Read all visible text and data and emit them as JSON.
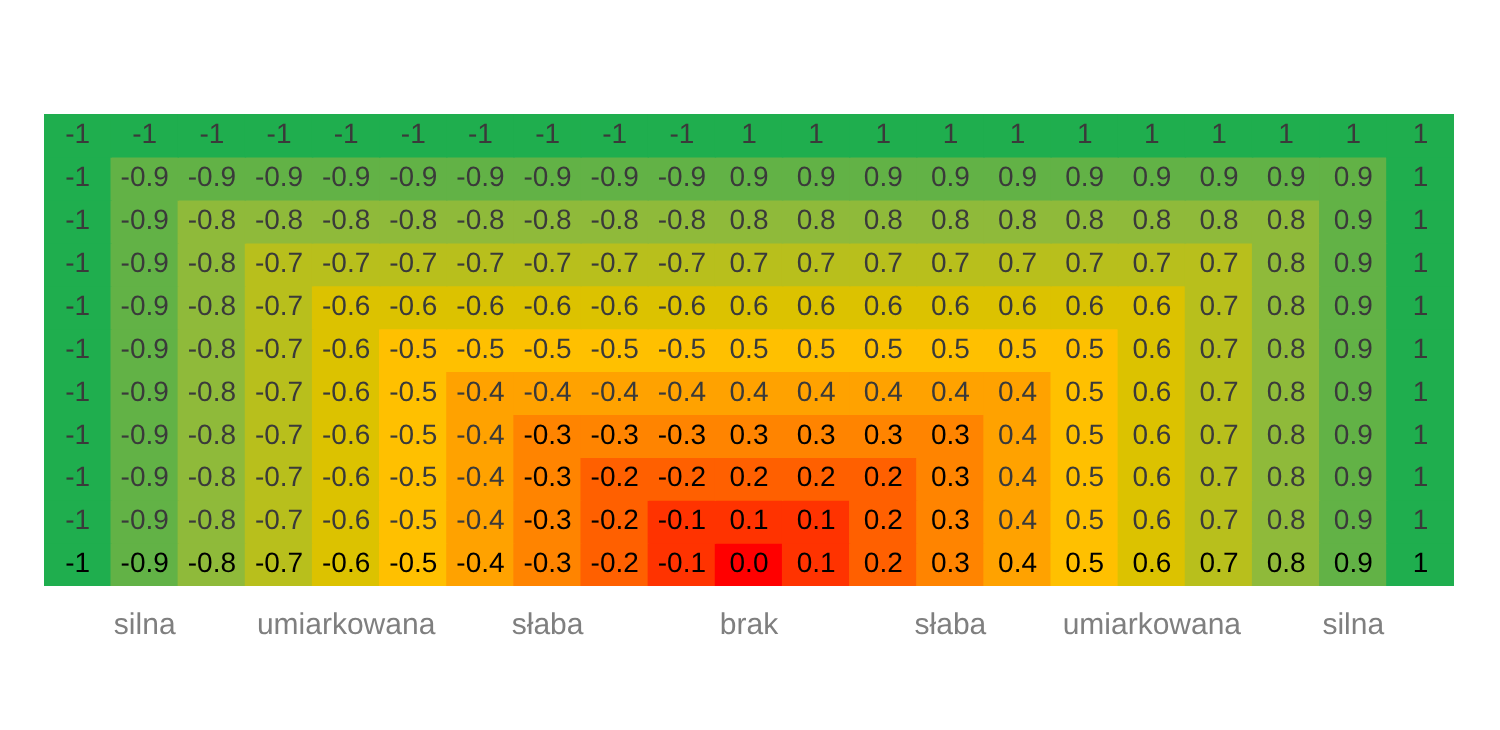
{
  "chart_data": {
    "type": "heatmap",
    "categories": [
      null,
      "silna",
      null,
      null,
      "umiarkowana",
      null,
      null,
      "słaba",
      null,
      null,
      "brak",
      null,
      null,
      "słaba",
      null,
      null,
      "umiarkowana",
      null,
      null,
      "silna",
      null
    ],
    "y_categories": [
      null,
      null,
      null,
      null,
      null,
      null,
      null,
      null,
      null,
      null,
      null
    ],
    "cells": [
      [
        -1,
        -1,
        -1,
        -1,
        -1,
        -1,
        -1,
        -1,
        -1,
        -1,
        1,
        1,
        1,
        1,
        1,
        1,
        1,
        1,
        1,
        1,
        1
      ],
      [
        -1,
        -0.9,
        -0.9,
        -0.9,
        -0.9,
        -0.9,
        -0.9,
        -0.9,
        -0.9,
        -0.9,
        0.9,
        0.9,
        0.9,
        0.9,
        0.9,
        0.9,
        0.9,
        0.9,
        0.9,
        0.9,
        1
      ],
      [
        -1,
        -0.9,
        -0.8,
        -0.8,
        -0.8,
        -0.8,
        -0.8,
        -0.8,
        -0.8,
        -0.8,
        0.8,
        0.8,
        0.8,
        0.8,
        0.8,
        0.8,
        0.8,
        0.8,
        0.8,
        0.9,
        1
      ],
      [
        -1,
        -0.9,
        -0.8,
        -0.7,
        -0.7,
        -0.7,
        -0.7,
        -0.7,
        -0.7,
        -0.7,
        0.7,
        0.7,
        0.7,
        0.7,
        0.7,
        0.7,
        0.7,
        0.7,
        0.8,
        0.9,
        1
      ],
      [
        -1,
        -0.9,
        -0.8,
        -0.7,
        -0.6,
        -0.6,
        -0.6,
        -0.6,
        -0.6,
        -0.6,
        0.6,
        0.6,
        0.6,
        0.6,
        0.6,
        0.6,
        0.6,
        0.7,
        0.8,
        0.9,
        1
      ],
      [
        -1,
        -0.9,
        -0.8,
        -0.7,
        -0.6,
        -0.5,
        -0.5,
        -0.5,
        -0.5,
        -0.5,
        0.5,
        0.5,
        0.5,
        0.5,
        0.5,
        0.5,
        0.6,
        0.7,
        0.8,
        0.9,
        1
      ],
      [
        -1,
        -0.9,
        -0.8,
        -0.7,
        -0.6,
        -0.5,
        -0.4,
        -0.4,
        -0.4,
        -0.4,
        0.4,
        0.4,
        0.4,
        0.4,
        0.4,
        0.5,
        0.6,
        0.7,
        0.8,
        0.9,
        1
      ],
      [
        -1,
        -0.9,
        -0.8,
        -0.7,
        -0.6,
        -0.5,
        -0.4,
        -0.3,
        -0.3,
        -0.3,
        0.3,
        0.3,
        0.3,
        0.3,
        0.4,
        0.5,
        0.6,
        0.7,
        0.8,
        0.9,
        1
      ],
      [
        -1,
        -0.9,
        -0.8,
        -0.7,
        -0.6,
        -0.5,
        -0.4,
        -0.3,
        -0.2,
        -0.2,
        0.2,
        0.2,
        0.2,
        0.3,
        0.4,
        0.5,
        0.6,
        0.7,
        0.8,
        0.9,
        1
      ],
      [
        -1,
        -0.9,
        -0.8,
        -0.7,
        -0.6,
        -0.5,
        -0.4,
        -0.3,
        -0.2,
        -0.1,
        0.1,
        0.1,
        0.2,
        0.3,
        0.4,
        0.5,
        0.6,
        0.7,
        0.8,
        0.9,
        1
      ],
      [
        -1,
        -0.9,
        -0.8,
        -0.7,
        -0.6,
        -0.5,
        -0.4,
        -0.3,
        -0.2,
        -0.1,
        0,
        0.1,
        0.2,
        0.3,
        0.4,
        0.5,
        0.6,
        0.7,
        0.8,
        0.9,
        1
      ]
    ],
    "cell_labels": [
      [
        "-1",
        "-1",
        "-1",
        "-1",
        "-1",
        "-1",
        "-1",
        "-1",
        "-1",
        "-1",
        "1",
        "1",
        "1",
        "1",
        "1",
        "1",
        "1",
        "1",
        "1",
        "1",
        "1"
      ],
      [
        "-1",
        "-0.9",
        "-0.9",
        "-0.9",
        "-0.9",
        "-0.9",
        "-0.9",
        "-0.9",
        "-0.9",
        "-0.9",
        "0.9",
        "0.9",
        "0.9",
        "0.9",
        "0.9",
        "0.9",
        "0.9",
        "0.9",
        "0.9",
        "0.9",
        "1"
      ],
      [
        "-1",
        "-0.9",
        "-0.8",
        "-0.8",
        "-0.8",
        "-0.8",
        "-0.8",
        "-0.8",
        "-0.8",
        "-0.8",
        "0.8",
        "0.8",
        "0.8",
        "0.8",
        "0.8",
        "0.8",
        "0.8",
        "0.8",
        "0.8",
        "0.9",
        "1"
      ],
      [
        "-1",
        "-0.9",
        "-0.8",
        "-0.7",
        "-0.7",
        "-0.7",
        "-0.7",
        "-0.7",
        "-0.7",
        "-0.7",
        "0.7",
        "0.7",
        "0.7",
        "0.7",
        "0.7",
        "0.7",
        "0.7",
        "0.7",
        "0.8",
        "0.9",
        "1"
      ],
      [
        "-1",
        "-0.9",
        "-0.8",
        "-0.7",
        "-0.6",
        "-0.6",
        "-0.6",
        "-0.6",
        "-0.6",
        "-0.6",
        "0.6",
        "0.6",
        "0.6",
        "0.6",
        "0.6",
        "0.6",
        "0.6",
        "0.7",
        "0.8",
        "0.9",
        "1"
      ],
      [
        "-1",
        "-0.9",
        "-0.8",
        "-0.7",
        "-0.6",
        "-0.5",
        "-0.5",
        "-0.5",
        "-0.5",
        "-0.5",
        "0.5",
        "0.5",
        "0.5",
        "0.5",
        "0.5",
        "0.5",
        "0.6",
        "0.7",
        "0.8",
        "0.9",
        "1"
      ],
      [
        "-1",
        "-0.9",
        "-0.8",
        "-0.7",
        "-0.6",
        "-0.5",
        "-0.4",
        "-0.4",
        "-0.4",
        "-0.4",
        "0.4",
        "0.4",
        "0.4",
        "0.4",
        "0.4",
        "0.5",
        "0.6",
        "0.7",
        "0.8",
        "0.9",
        "1"
      ],
      [
        "-1",
        "-0.9",
        "-0.8",
        "-0.7",
        "-0.6",
        "-0.5",
        "-0.4",
        "-0.3",
        "-0.3",
        "-0.3",
        "0.3",
        "0.3",
        "0.3",
        "0.3",
        "0.4",
        "0.5",
        "0.6",
        "0.7",
        "0.8",
        "0.9",
        "1"
      ],
      [
        "-1",
        "-0.9",
        "-0.8",
        "-0.7",
        "-0.6",
        "-0.5",
        "-0.4",
        "-0.3",
        "-0.2",
        "-0.2",
        "0.2",
        "0.2",
        "0.2",
        "0.3",
        "0.4",
        "0.5",
        "0.6",
        "0.7",
        "0.8",
        "0.9",
        "1"
      ],
      [
        "-1",
        "-0.9",
        "-0.8",
        "-0.7",
        "-0.6",
        "-0.5",
        "-0.4",
        "-0.3",
        "-0.2",
        "-0.1",
        "0.1",
        "0.1",
        "0.2",
        "0.3",
        "0.4",
        "0.5",
        "0.6",
        "0.7",
        "0.8",
        "0.9",
        "1"
      ],
      [
        "-1",
        "-0.9",
        "-0.8",
        "-0.7",
        "-0.6",
        "-0.5",
        "-0.4",
        "-0.3",
        "-0.2",
        "-0.1",
        "0.0",
        "0.1",
        "0.2",
        "0.3",
        "0.4",
        "0.5",
        "0.6",
        "0.7",
        "0.8",
        "0.9",
        "1"
      ]
    ]
  }
}
